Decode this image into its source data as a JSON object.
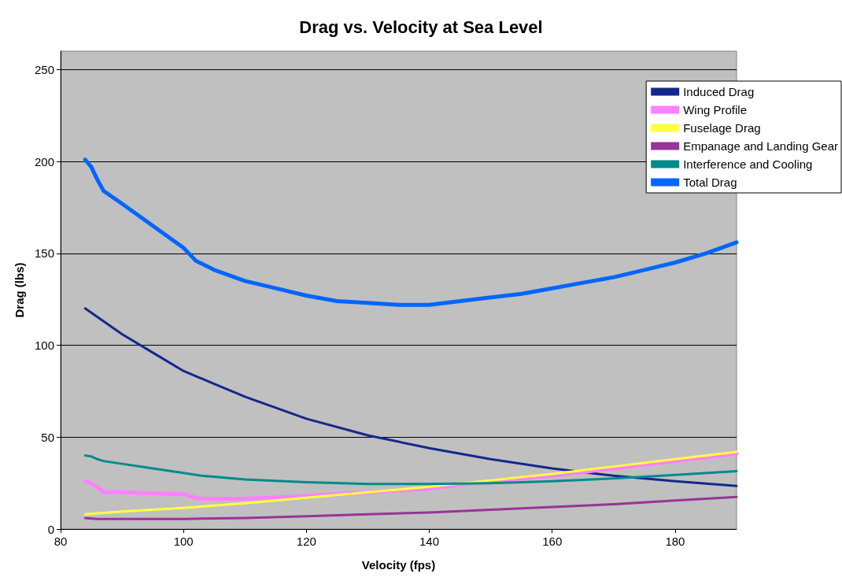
{
  "chart_data": {
    "type": "line",
    "title": "Drag vs. Velocity at Sea Level",
    "xlabel": "Velocity (fps)",
    "ylabel": "Drag (lbs)",
    "xlim": [
      80,
      190
    ],
    "xticks": [
      80,
      100,
      120,
      140,
      160,
      180
    ],
    "ylim": [
      0,
      260
    ],
    "yticks": [
      0,
      50,
      100,
      150,
      200,
      250
    ],
    "grid": "y",
    "legend": "top right",
    "marker": "none",
    "line_style": "solid",
    "series": [
      {
        "name": "Induced Drag",
        "color": "#14288c",
        "x": [
          84,
          90,
          95,
          100,
          105,
          110,
          115,
          120,
          130,
          140,
          150,
          160,
          170,
          180,
          190
        ],
        "values": [
          120,
          106,
          96,
          86,
          79,
          72,
          66,
          60,
          51,
          44,
          38,
          33,
          29,
          26,
          23.5
        ]
      },
      {
        "name": "Wing Profile",
        "color": "#ff80ff",
        "x": [
          84,
          85,
          86,
          87,
          90,
          95,
          100,
          102,
          103,
          110,
          120,
          130,
          140,
          150,
          160,
          170,
          180,
          190
        ],
        "values": [
          26,
          25,
          23,
          20,
          20,
          19.5,
          19,
          17,
          16.5,
          16.5,
          18,
          20,
          22,
          26,
          29,
          33,
          37,
          41
        ]
      },
      {
        "name": "Fuselage Drag",
        "color": "#ffff40",
        "x": [
          84,
          90,
          100,
          110,
          120,
          130,
          140,
          150,
          160,
          170,
          180,
          190
        ],
        "values": [
          8,
          9.5,
          11.5,
          14,
          17,
          20,
          23,
          26.5,
          30,
          34,
          38,
          42
        ]
      },
      {
        "name": "Empanage and Landing Gear",
        "color": "#993399",
        "x": [
          84,
          86,
          100,
          110,
          120,
          130,
          140,
          150,
          160,
          170,
          180,
          190
        ],
        "values": [
          6,
          5.5,
          5.5,
          6,
          7,
          8,
          9,
          10.5,
          12,
          13.5,
          15.5,
          17.5
        ]
      },
      {
        "name": "Interference and Cooling",
        "color": "#008b8b",
        "x": [
          84,
          85,
          86,
          87,
          90,
          95,
          100,
          103,
          110,
          120,
          130,
          140,
          150,
          160,
          170,
          180,
          190
        ],
        "values": [
          40,
          39.5,
          38,
          37,
          35.5,
          33,
          30.5,
          29,
          27,
          25.5,
          24.5,
          24.5,
          25,
          26,
          27.5,
          29.5,
          31.5
        ]
      },
      {
        "name": "Total Drag",
        "color": "#0066ff",
        "x": [
          84,
          85,
          86,
          87,
          90,
          95,
          100,
          102,
          105,
          110,
          115,
          120,
          125,
          130,
          135,
          140,
          145,
          150,
          155,
          160,
          165,
          170,
          175,
          180,
          185,
          190
        ],
        "values": [
          201,
          197,
          190,
          184,
          177,
          165,
          153,
          146,
          141,
          135,
          131,
          127,
          124,
          123,
          122,
          122,
          124,
          126,
          128,
          131,
          134,
          137,
          141,
          145,
          150,
          156
        ]
      }
    ]
  }
}
